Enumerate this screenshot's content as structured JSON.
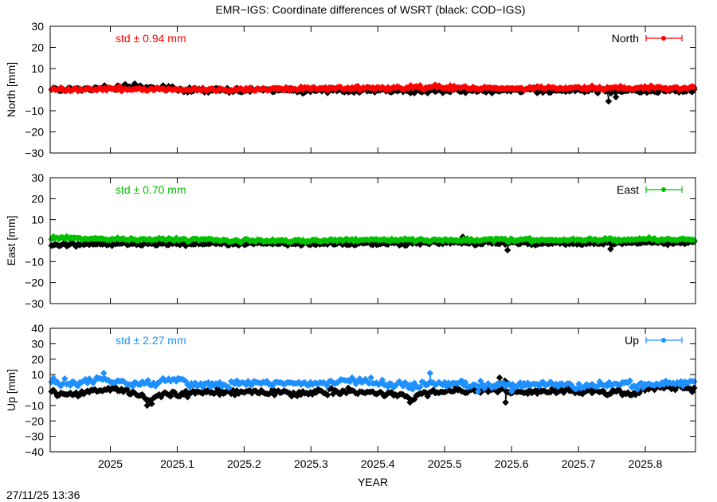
{
  "title": "EMR−IGS: Coordinate differences of WSRT (black: COD−IGS)",
  "xlabel": "YEAR",
  "timestamp": "27/11/25 13:36",
  "colors": {
    "black_series": "#000000",
    "north": "#ff0000",
    "east": "#00c000",
    "up": "#1e90ff"
  },
  "chart_data": [
    {
      "type": "scatter",
      "panel": "north",
      "ylabel": "North [mm]",
      "std_label": "std ± 0.94 mm",
      "legend": "North",
      "color": "#ff0000",
      "xlim": [
        2024.91,
        2025.875
      ],
      "ylim": [
        -30,
        30
      ],
      "x_ticks": [
        2025,
        2025.1,
        2025.2,
        2025.3,
        2025.4,
        2025.5,
        2025.6,
        2025.7,
        2025.8
      ],
      "y_ticks": [
        30,
        20,
        10,
        0,
        -10,
        -20,
        -30
      ],
      "series": [
        {
          "name": "North",
          "color": "#ff0000",
          "knots": [
            [
              2024.91,
              0
            ],
            [
              2025.0,
              0.4
            ],
            [
              2025.1,
              0
            ],
            [
              2025.2,
              0.2
            ],
            [
              2025.3,
              0.6
            ],
            [
              2025.4,
              0.9
            ],
            [
              2025.5,
              1.1
            ],
            [
              2025.6,
              0.5
            ],
            [
              2025.7,
              0.9
            ],
            [
              2025.8,
              0.7
            ],
            [
              2025.875,
              0.7
            ]
          ],
          "noise": 0.8
        },
        {
          "color": "#000000",
          "knots": [
            [
              2024.91,
              0
            ],
            [
              2025.0,
              0.7
            ],
            [
              2025.05,
              1.4
            ],
            [
              2025.1,
              0.1
            ],
            [
              2025.2,
              -0.3
            ],
            [
              2025.3,
              -0.3
            ],
            [
              2025.4,
              -0.4
            ],
            [
              2025.5,
              -0.6
            ],
            [
              2025.6,
              -0.5
            ],
            [
              2025.7,
              -0.6
            ],
            [
              2025.8,
              -0.3
            ],
            [
              2025.875,
              -0.3
            ]
          ],
          "noise": 1.0,
          "spikes": [
            [
              2025.745,
              -5.5
            ],
            [
              2025.756,
              -3.5
            ],
            [
              2025.638,
              -1.5
            ]
          ]
        }
      ]
    },
    {
      "type": "scatter",
      "panel": "east",
      "ylabel": "East [mm]",
      "std_label": "std ± 0.70 mm",
      "legend": "East",
      "color": "#00c000",
      "xlim": [
        2024.91,
        2025.875
      ],
      "ylim": [
        -30,
        30
      ],
      "x_ticks": [
        2025,
        2025.1,
        2025.2,
        2025.3,
        2025.4,
        2025.5,
        2025.6,
        2025.7,
        2025.8
      ],
      "y_ticks": [
        30,
        20,
        10,
        0,
        -10,
        -20,
        -30
      ],
      "series": [
        {
          "name": "East",
          "color": "#00c000",
          "knots": [
            [
              2024.91,
              1.5
            ],
            [
              2025.0,
              0.7
            ],
            [
              2025.1,
              0.5
            ],
            [
              2025.2,
              0
            ],
            [
              2025.3,
              0.1
            ],
            [
              2025.4,
              0.3
            ],
            [
              2025.5,
              0.4
            ],
            [
              2025.6,
              0.3
            ],
            [
              2025.7,
              0.5
            ],
            [
              2025.8,
              0.5
            ],
            [
              2025.875,
              0.6
            ]
          ],
          "noise": 0.6
        },
        {
          "color": "#000000",
          "knots": [
            [
              2024.91,
              -2.2
            ],
            [
              2025.0,
              -1.6
            ],
            [
              2025.1,
              -1.5
            ],
            [
              2025.2,
              -1.3
            ],
            [
              2025.3,
              -1.5
            ],
            [
              2025.4,
              -1.4
            ],
            [
              2025.5,
              -1.2
            ],
            [
              2025.6,
              -1.2
            ],
            [
              2025.7,
              -1.3
            ],
            [
              2025.8,
              -1.0
            ],
            [
              2025.875,
              -0.9
            ]
          ],
          "noise": 0.7,
          "spikes": [
            [
              2025.594,
              -4.5
            ],
            [
              2025.748,
              -4.0
            ],
            [
              2025.527,
              1.8
            ]
          ]
        }
      ]
    },
    {
      "type": "scatter",
      "panel": "up",
      "ylabel": "Up [mm]",
      "std_label": "std ± 2.27 mm",
      "legend": "Up",
      "color": "#1e90ff",
      "xlim": [
        2024.91,
        2025.875
      ],
      "ylim": [
        -40,
        40
      ],
      "x_ticks": [
        2025,
        2025.1,
        2025.2,
        2025.3,
        2025.4,
        2025.5,
        2025.6,
        2025.7,
        2025.8
      ],
      "y_ticks": [
        40,
        30,
        20,
        10,
        0,
        -10,
        -20,
        -30,
        -40
      ],
      "series": [
        {
          "name": "Up",
          "color": "#1e90ff",
          "knots": [
            [
              2024.91,
              6
            ],
            [
              2024.95,
              4
            ],
            [
              2024.99,
              7
            ],
            [
              2025.04,
              3
            ],
            [
              2025.08,
              6
            ],
            [
              2025.1,
              8
            ],
            [
              2025.12,
              3
            ],
            [
              2025.2,
              4
            ],
            [
              2025.25,
              5
            ],
            [
              2025.3,
              4
            ],
            [
              2025.35,
              6
            ],
            [
              2025.4,
              5
            ],
            [
              2025.45,
              3
            ],
            [
              2025.48,
              5
            ],
            [
              2025.55,
              3
            ],
            [
              2025.6,
              3
            ],
            [
              2025.65,
              4
            ],
            [
              2025.7,
              3
            ],
            [
              2025.75,
              4
            ],
            [
              2025.8,
              3
            ],
            [
              2025.85,
              4
            ],
            [
              2025.875,
              4
            ]
          ],
          "noise": 1.8,
          "spikes": [
            [
              2024.99,
              11
            ],
            [
              2025.478,
              11
            ],
            [
              2025.55,
              -1
            ],
            [
              2025.6,
              -1
            ]
          ]
        },
        {
          "color": "#000000",
          "knots": [
            [
              2024.91,
              -2
            ],
            [
              2024.95,
              -3
            ],
            [
              2025.0,
              1
            ],
            [
              2025.03,
              -1
            ],
            [
              2025.05,
              -5
            ],
            [
              2025.06,
              -8
            ],
            [
              2025.07,
              -3
            ],
            [
              2025.1,
              -3
            ],
            [
              2025.15,
              -1
            ],
            [
              2025.2,
              -1
            ],
            [
              2025.3,
              -2
            ],
            [
              2025.35,
              -1
            ],
            [
              2025.4,
              -2
            ],
            [
              2025.44,
              -3
            ],
            [
              2025.45,
              -7
            ],
            [
              2025.46,
              -2
            ],
            [
              2025.5,
              -1
            ],
            [
              2025.55,
              0
            ],
            [
              2025.6,
              -1
            ],
            [
              2025.65,
              -1
            ],
            [
              2025.7,
              -1
            ],
            [
              2025.75,
              -1
            ],
            [
              2025.78,
              -3
            ],
            [
              2025.8,
              1
            ],
            [
              2025.85,
              2
            ],
            [
              2025.875,
              0
            ]
          ],
          "noise": 1.6,
          "spikes": [
            [
              2025.591,
              -8
            ],
            [
              2025.582,
              8
            ],
            [
              2025.055,
              -10
            ],
            [
              2025.448,
              -8
            ],
            [
              2025.59,
              6
            ]
          ]
        }
      ]
    }
  ]
}
